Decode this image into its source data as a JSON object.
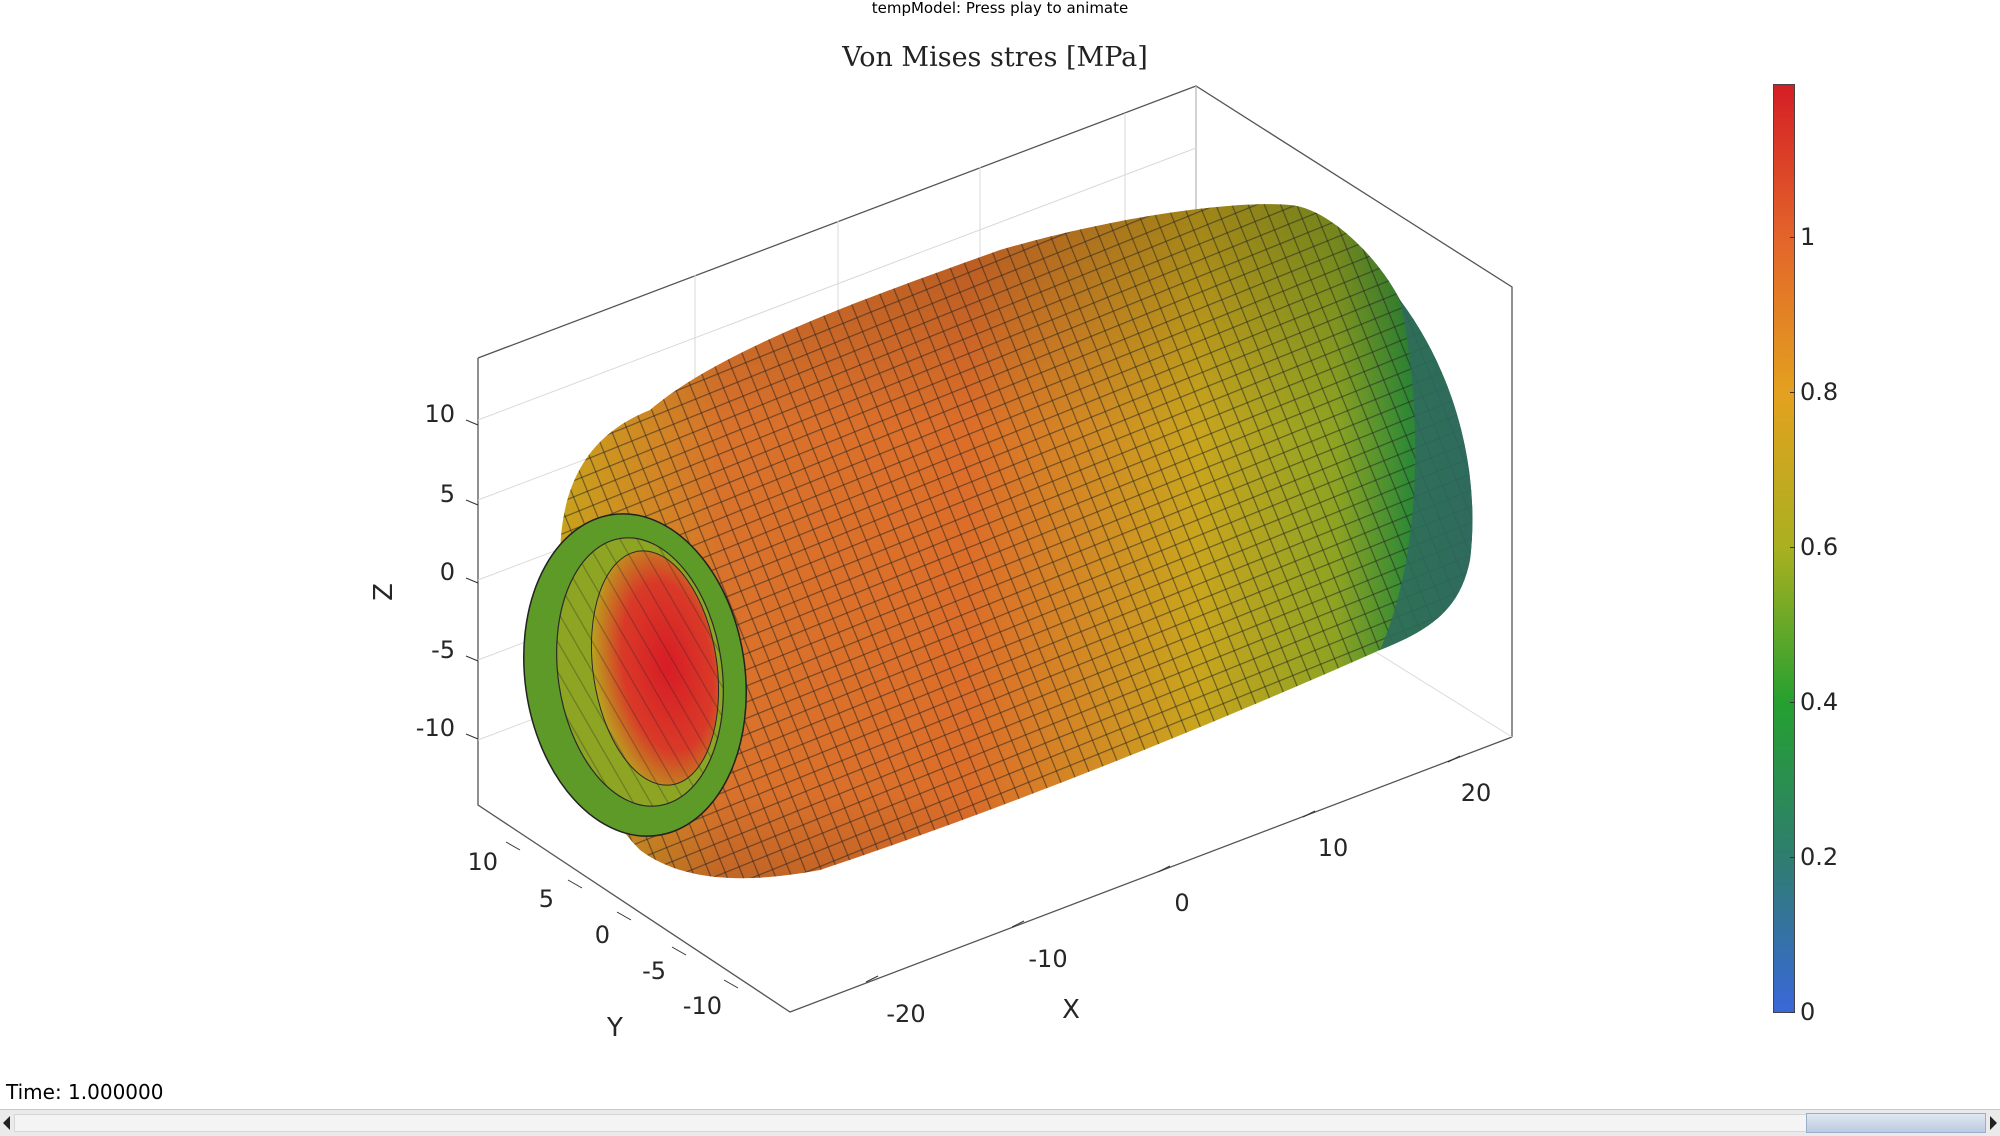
{
  "window": {
    "title": "tempModel: Press play to animate"
  },
  "figure": {
    "title": "Von Mises stres [MPa]",
    "z_axis": {
      "label": "Z",
      "ticks": [
        "10",
        "5",
        "0",
        "-5",
        "-10"
      ]
    },
    "y_axis": {
      "label": "Y",
      "ticks": [
        "10",
        "5",
        "0",
        "-5",
        "-10"
      ]
    },
    "x_axis": {
      "label": "X",
      "ticks": [
        "-20",
        "-10",
        "0",
        "10",
        "20"
      ]
    },
    "colorbar": {
      "ticks": [
        "0",
        "0.2",
        "0.4",
        "0.6",
        "0.8",
        "1"
      ],
      "colors": [
        "#3a67d9",
        "#2f7d6f",
        "#25a030",
        "#a9b020",
        "#e3a11f",
        "#e3652a",
        "#d41e25"
      ]
    },
    "surface": {
      "description_colors": {
        "outer_rim": "#5a9a28",
        "inner_bore": "#d6242a",
        "end_cap": "#2f6b5e"
      }
    }
  },
  "status": {
    "time_text": "Time: 1.000000"
  }
}
